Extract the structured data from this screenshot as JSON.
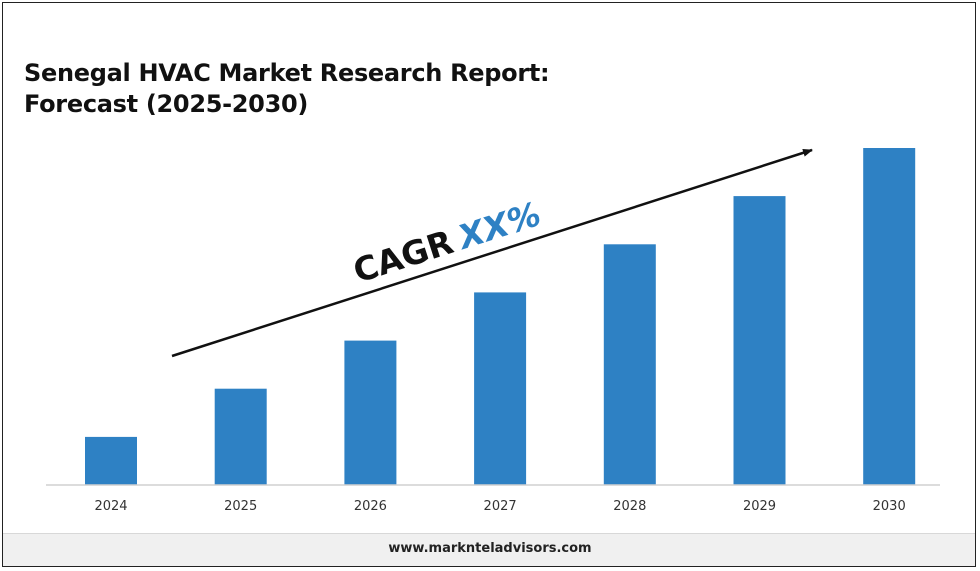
{
  "title": {
    "line1": "Senegal HVAC Market Research Report:",
    "line2": "Forecast (2025-2030)"
  },
  "cagr": {
    "prefix": "CAGR",
    "value": "XX%"
  },
  "footer": {
    "url": "www.marknteladvisors.com"
  },
  "colors": {
    "bar": "#2E81C4",
    "cagr_value": "#2E81C4",
    "arrow": "#111111"
  },
  "chart_data": {
    "type": "bar",
    "categories": [
      "2024",
      "2025",
      "2026",
      "2027",
      "2028",
      "2029",
      "2030"
    ],
    "values": [
      1,
      2,
      3,
      4,
      5,
      6,
      7
    ],
    "title": "Senegal HVAC Market Research Report: Forecast (2025-2030)",
    "xlabel": "",
    "ylabel": "",
    "ylim": [
      0,
      7
    ],
    "grid": false,
    "legend": "none",
    "annotation": "CAGR XX%"
  }
}
